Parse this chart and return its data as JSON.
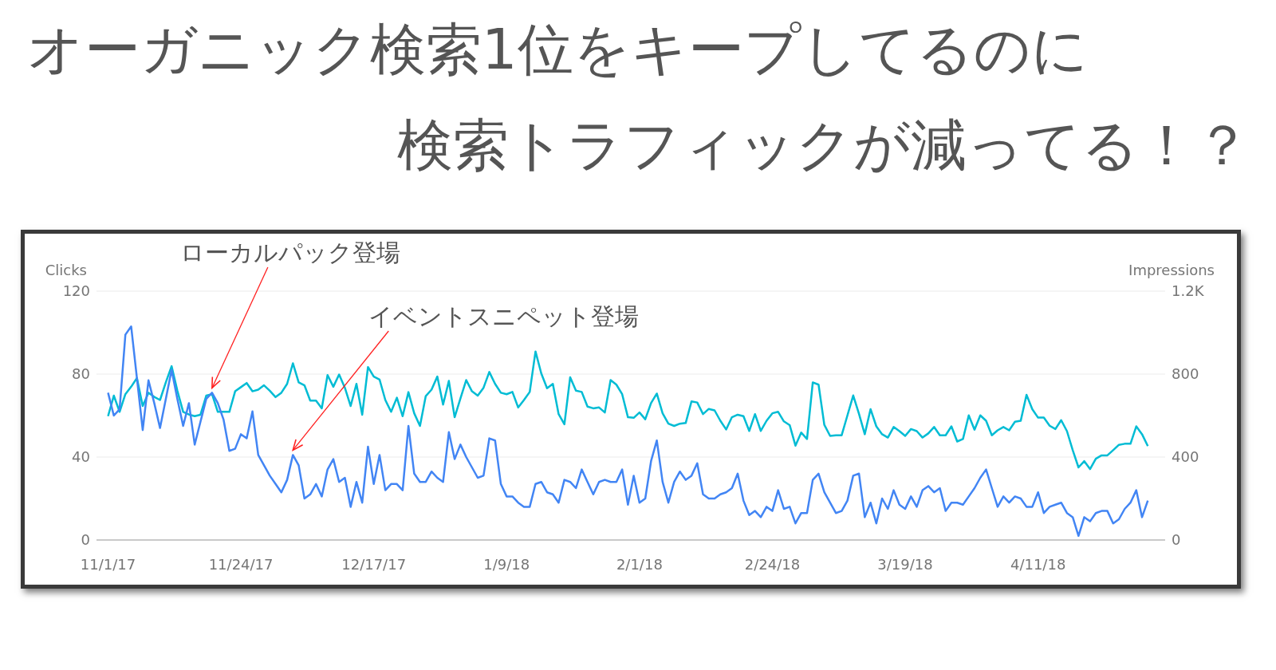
{
  "chart_data": {
    "type": "line",
    "title": "オーガニック検索1位をキープしてるのに",
    "subtitle": "検索トラフィックが減ってる！？",
    "ylabel": "Clicks",
    "y2label": "Impressions",
    "x": [
      "2017-11-01",
      "2017-11-02",
      "2017-11-03",
      "2017-11-04",
      "2017-11-05",
      "2017-11-06",
      "2017-11-07",
      "2017-11-08",
      "2017-11-09",
      "2017-11-10",
      "2017-11-11",
      "2017-11-12",
      "2017-11-13",
      "2017-11-14",
      "2017-11-15",
      "2017-11-16",
      "2017-11-17",
      "2017-11-18",
      "2017-11-19",
      "2017-11-20",
      "2017-11-21",
      "2017-11-22",
      "2017-11-23",
      "2017-11-24",
      "2017-11-25",
      "2017-11-26",
      "2017-11-27",
      "2017-11-28",
      "2017-11-29",
      "2017-11-30",
      "2017-12-01",
      "2017-12-02",
      "2017-12-03",
      "2017-12-04",
      "2017-12-05",
      "2017-12-06",
      "2017-12-07",
      "2017-12-08",
      "2017-12-09",
      "2017-12-10",
      "2017-12-11",
      "2017-12-12",
      "2017-12-13",
      "2017-12-14",
      "2017-12-15",
      "2017-12-16",
      "2017-12-17",
      "2017-12-18",
      "2017-12-19",
      "2017-12-20",
      "2017-12-21",
      "2017-12-22",
      "2017-12-23",
      "2017-12-24",
      "2017-12-25",
      "2017-12-26",
      "2017-12-27",
      "2017-12-28",
      "2017-12-29",
      "2017-12-30",
      "2017-12-31",
      "2018-01-01",
      "2018-01-02",
      "2018-01-03",
      "2018-01-04",
      "2018-01-05",
      "2018-01-06",
      "2018-01-07",
      "2018-01-08",
      "2018-01-09",
      "2018-01-10",
      "2018-01-11",
      "2018-01-12",
      "2018-01-13",
      "2018-01-14",
      "2018-01-15",
      "2018-01-16",
      "2018-01-17",
      "2018-01-18",
      "2018-01-19",
      "2018-01-20",
      "2018-01-21",
      "2018-01-22",
      "2018-01-23",
      "2018-01-24",
      "2018-01-25",
      "2018-01-26",
      "2018-01-27",
      "2018-01-28",
      "2018-01-29",
      "2018-01-30",
      "2018-01-31",
      "2018-02-01",
      "2018-02-02",
      "2018-02-03",
      "2018-02-04",
      "2018-02-05",
      "2018-02-06",
      "2018-02-07",
      "2018-02-08",
      "2018-02-09",
      "2018-02-10",
      "2018-02-11",
      "2018-02-12",
      "2018-02-13",
      "2018-02-14",
      "2018-02-15",
      "2018-02-16",
      "2018-02-17",
      "2018-02-18",
      "2018-02-19",
      "2018-02-20",
      "2018-02-21",
      "2018-02-22",
      "2018-02-23",
      "2018-02-24",
      "2018-02-25",
      "2018-02-26",
      "2018-02-27",
      "2018-02-28",
      "2018-03-01",
      "2018-03-02",
      "2018-03-03",
      "2018-03-04",
      "2018-03-05",
      "2018-03-06",
      "2018-03-07",
      "2018-03-08",
      "2018-03-09",
      "2018-03-10",
      "2018-03-11",
      "2018-03-12",
      "2018-03-13",
      "2018-03-14",
      "2018-03-15",
      "2018-03-16",
      "2018-03-17",
      "2018-03-18",
      "2018-03-19",
      "2018-03-20",
      "2018-03-21",
      "2018-03-22",
      "2018-03-23",
      "2018-03-24",
      "2018-03-25",
      "2018-03-26",
      "2018-03-27",
      "2018-03-28",
      "2018-03-29",
      "2018-03-30",
      "2018-03-31",
      "2018-04-01",
      "2018-04-02",
      "2018-04-03",
      "2018-04-04",
      "2018-04-05",
      "2018-04-06",
      "2018-04-07",
      "2018-04-08",
      "2018-04-09",
      "2018-04-10",
      "2018-04-11",
      "2018-04-12",
      "2018-04-13",
      "2018-04-14",
      "2018-04-15",
      "2018-04-16",
      "2018-04-17",
      "2018-04-18",
      "2018-04-19",
      "2018-04-20",
      "2018-04-21",
      "2018-04-22",
      "2018-04-23",
      "2018-04-24",
      "2018-04-25",
      "2018-04-26",
      "2018-04-27",
      "2018-04-28",
      "2018-04-29",
      "2018-04-30"
    ],
    "series": [
      {
        "color": "#00bcd4",
        "axis": "y2",
        "values": [
          597,
          696,
          618,
          703,
          739,
          781,
          646,
          710,
          690,
          675,
          760,
          838,
          720,
          618,
          605,
          597,
          604,
          696,
          703,
          618,
          618,
          618,
          717,
          737,
          757,
          717,
          725,
          746,
          720,
          689,
          710,
          753,
          852,
          760,
          746,
          672,
          672,
          635,
          795,
          739,
          798,
          734,
          646,
          753,
          604,
          834,
          788,
          774,
          675,
          618,
          686,
          597,
          713,
          611,
          550,
          694,
          725,
          788,
          653,
          767,
          592,
          682,
          771,
          717,
          696,
          734,
          810,
          753,
          710,
          703,
          714,
          639,
          675,
          714,
          909,
          803,
          732,
          753,
          607,
          558,
          785,
          720,
          714,
          643,
          635,
          639,
          615,
          771,
          749,
          703,
          592,
          589,
          615,
          582,
          660,
          706,
          611,
          561,
          550,
          561,
          564,
          668,
          663,
          607,
          632,
          625,
          575,
          533,
          592,
          604,
          597,
          526,
          607,
          526,
          575,
          611,
          618,
          572,
          554,
          455,
          518,
          487,
          760,
          749,
          555,
          502,
          505,
          505,
          601,
          697,
          608,
          510,
          631,
          548,
          510,
          494,
          545,
          525,
          502,
          535,
          525,
          494,
          514,
          545,
          505,
          505,
          548,
          475,
          487,
          601,
          532,
          601,
          575,
          505,
          529,
          545,
          529,
          570,
          575,
          700,
          631,
          590,
          590,
          551,
          535,
          578,
          525,
          433,
          350,
          380,
          342,
          392,
          408,
          408,
          433,
          459,
          464,
          464,
          548,
          510,
          453
        ]
      },
      {
        "color": "#4285f4",
        "values": [
          71,
          60,
          63,
          99,
          103,
          78,
          53,
          77,
          66,
          54,
          68,
          82,
          68,
          55,
          66,
          46,
          57,
          68,
          71,
          66,
          58,
          43,
          44,
          51,
          49,
          62,
          41,
          36,
          31,
          27,
          23,
          29,
          41,
          36,
          20,
          22,
          27,
          21,
          34,
          39,
          28,
          30,
          16,
          28,
          18,
          45,
          27,
          41,
          24,
          27,
          27,
          24,
          55,
          32,
          28,
          28,
          33,
          30,
          28,
          52,
          39,
          46,
          40,
          35,
          30,
          31,
          49,
          48,
          27,
          21,
          21,
          18,
          16,
          16,
          27,
          28,
          23,
          22,
          18,
          29,
          28,
          25,
          34,
          28,
          22,
          28,
          29,
          28,
          28,
          34,
          17,
          31,
          18,
          20,
          38,
          48,
          28,
          18,
          28,
          33,
          29,
          31,
          37,
          22,
          20,
          20,
          22,
          23,
          25,
          32,
          19,
          12,
          14,
          11,
          16,
          14,
          24,
          15,
          16,
          8,
          13,
          13,
          29,
          32,
          23,
          18,
          13,
          14,
          19,
          31,
          32,
          11,
          18,
          8,
          20,
          15,
          24,
          17,
          15,
          21,
          16,
          24,
          26,
          23,
          25,
          14,
          18,
          18,
          17,
          21,
          25,
          30,
          34,
          25,
          16,
          21,
          18,
          21,
          20,
          16,
          16,
          23,
          13,
          16,
          17,
          18,
          13,
          11,
          2,
          11,
          9,
          13,
          14,
          14,
          8,
          10,
          15,
          18,
          24,
          11,
          19
        ]
      }
    ],
    "xlim": [
      "2017-10-30",
      "2018-05-03"
    ],
    "xticks": [
      {
        "value": "2017-11-01",
        "label": "11/1/17"
      },
      {
        "value": "2017-11-24",
        "label": "11/24/17"
      },
      {
        "value": "2017-12-17",
        "label": "12/17/17"
      },
      {
        "value": "2018-01-09",
        "label": "1/9/18"
      },
      {
        "value": "2018-02-01",
        "label": "2/1/18"
      },
      {
        "value": "2018-02-24",
        "label": "2/24/18"
      },
      {
        "value": "2018-03-19",
        "label": "3/19/18"
      },
      {
        "value": "2018-04-11",
        "label": "4/11/18"
      }
    ],
    "ylim": [
      0,
      120
    ],
    "yticks": [
      0,
      40,
      80,
      120
    ],
    "y2lim": [
      0,
      1200
    ],
    "y2ticks": [
      0,
      400,
      800,
      {
        "value": 1200,
        "label": "1.2K"
      }
    ],
    "annotations": [
      {
        "text": "ローカルパック登場",
        "x": "2017-11-19",
        "y": 71
      },
      {
        "text": "イベントスニペット登場",
        "x": "2017-12-03",
        "y": 41
      }
    ],
    "grid": "y",
    "marker": "none",
    "line_style": "solid"
  }
}
